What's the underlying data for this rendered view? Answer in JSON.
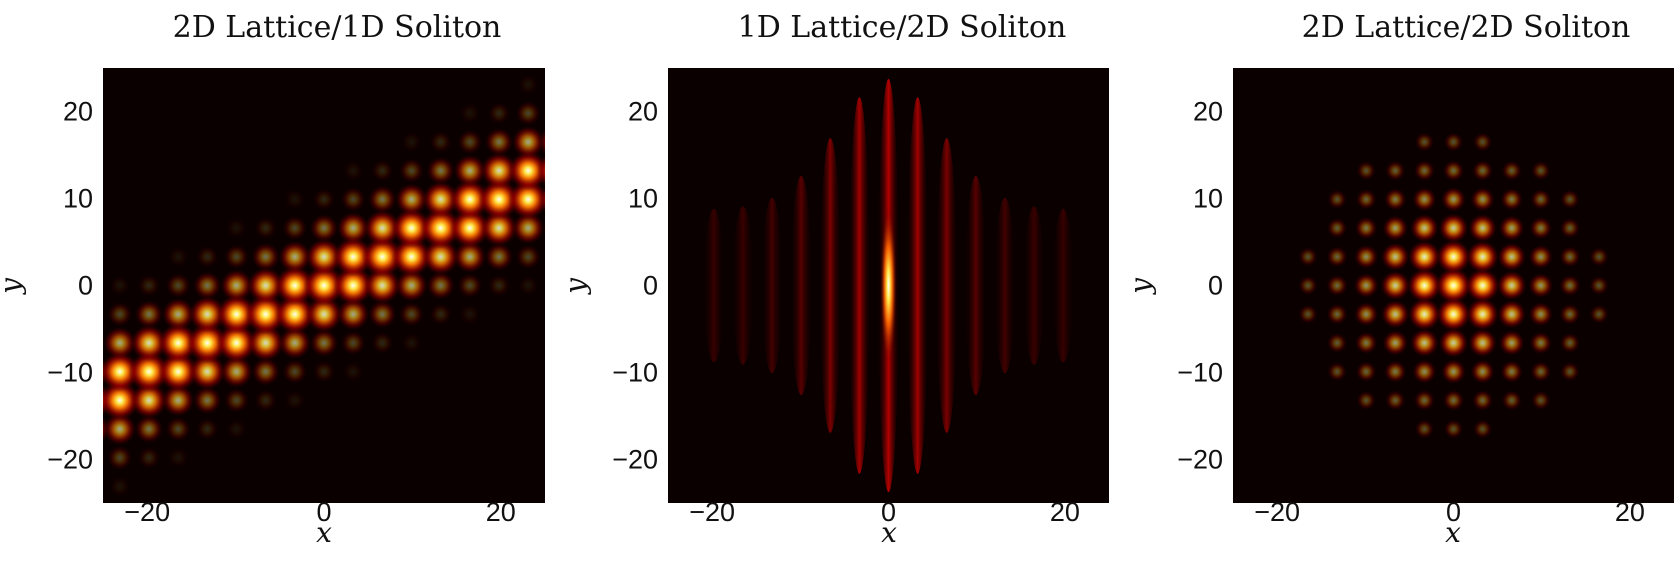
{
  "chart_data": [
    {
      "type": "heatmap",
      "title": "2D Lattice/1D Soliton",
      "xlabel": "x",
      "ylabel": "y",
      "xlim": [
        -25,
        25
      ],
      "ylim": [
        -25,
        25
      ],
      "xticks": [
        "−20",
        "0",
        "20"
      ],
      "yticks": [
        "20",
        "10",
        "0",
        "−10",
        "−20"
      ],
      "xtick_values": [
        -20,
        0,
        20
      ],
      "ytick_values": [
        20,
        10,
        0,
        -10,
        -20
      ],
      "colormap": "hot",
      "pattern": "2D lattice of intensity spots (period ≈ 3.3) along a diagonal band y ≈ 0.5x, width ≈ 6",
      "lattice_period": 3.3,
      "band_slope": 0.5,
      "band_width": 6.5,
      "grid": false,
      "legend": "none"
    },
    {
      "type": "heatmap",
      "title": "1D Lattice/2D Soliton",
      "xlabel": "x",
      "ylabel": "y",
      "xlim": [
        -25,
        25
      ],
      "ylim": [
        -25,
        25
      ],
      "xticks": [
        "−20",
        "0",
        "20"
      ],
      "yticks": [
        "20",
        "10",
        "0",
        "−10",
        "−20"
      ],
      "xtick_values": [
        -20,
        0,
        20
      ],
      "ytick_values": [
        20,
        10,
        0,
        -10,
        -20
      ],
      "colormap": "hot",
      "pattern": "vertical stripes (period ≈ 3.3) with a bright elongated peak at (0, 0)",
      "lattice_period": 3.3,
      "peak": [
        0,
        0
      ],
      "grid": false,
      "legend": "none"
    },
    {
      "type": "heatmap",
      "title": "2D Lattice/2D Soliton",
      "xlabel": "x",
      "ylabel": "y",
      "xlim": [
        -25,
        25
      ],
      "ylim": [
        -25,
        25
      ],
      "xticks": [
        "−20",
        "0",
        "20"
      ],
      "yticks": [
        "20",
        "10",
        "0",
        "−10",
        "−20"
      ],
      "xtick_values": [
        -20,
        0,
        20
      ],
      "ytick_values": [
        20,
        10,
        0,
        -10,
        -20
      ],
      "colormap": "hot",
      "pattern": "2D lattice of intensity spots (period ≈ 3.3) with a localized bright peak at (0, 0)",
      "lattice_period": 3.3,
      "peak": [
        0,
        0
      ],
      "grid": false,
      "legend": "none"
    }
  ]
}
